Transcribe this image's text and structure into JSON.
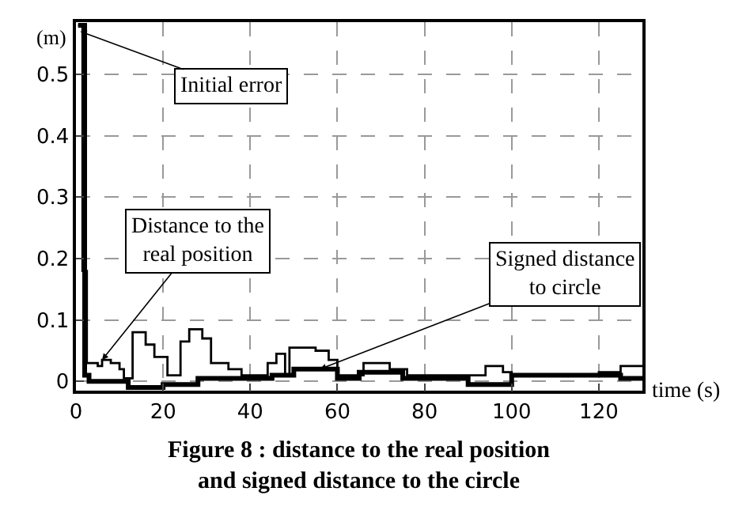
{
  "chart_data": {
    "type": "step",
    "title": "Figure 8 : distance to the real position and signed distance to the circle",
    "xlabel": "time (s)",
    "ylabel": "(m)",
    "xlim": [
      0,
      130
    ],
    "xticks": [
      0,
      20,
      40,
      60,
      80,
      100,
      120
    ],
    "ylim": [
      -0.015,
      0.585
    ],
    "yticks": [
      0,
      0.1,
      0.2,
      0.3,
      0.4,
      0.5
    ],
    "grid": true,
    "line_style": "solid",
    "series": [
      {
        "color": "#000000",
        "x": [
          0.5,
          1.5,
          2.5,
          5,
          6,
          8,
          10,
          11,
          13,
          16,
          18,
          21,
          24,
          26,
          29,
          31,
          35,
          38,
          44,
          46,
          48,
          49,
          55,
          58,
          60,
          66,
          72,
          76,
          94,
          98,
          100,
          120,
          125,
          130
        ],
        "values": [
          0.58,
          0.18,
          0.03,
          0.025,
          0.035,
          0.03,
          0.02,
          0.005,
          0.08,
          0.06,
          0.04,
          0.01,
          0.065,
          0.085,
          0.07,
          0.03,
          0.02,
          0.01,
          0.03,
          0.045,
          0.01,
          0.055,
          0.05,
          0.035,
          0.01,
          0.03,
          0.02,
          0.01,
          0.025,
          0.015,
          0.01,
          0.015,
          0.025,
          0.025
        ]
      },
      {
        "color": "#000000",
        "x": [
          0.5,
          2,
          3,
          12,
          20,
          28,
          45,
          50,
          60,
          65,
          75,
          90,
          100,
          125,
          130
        ],
        "values": [
          0.58,
          0.01,
          0,
          -0.01,
          -0.005,
          0.005,
          0.01,
          0.02,
          0.005,
          0.015,
          0.005,
          -0.005,
          0.01,
          0.005,
          0.005
        ]
      }
    ],
    "annotations": [
      {
        "text": "Initial error",
        "x": 1,
        "y": 0.57
      },
      {
        "text": "Distance to the real position",
        "x": 6,
        "y": 0.035
      },
      {
        "text": "Signed distance to circle",
        "x": 56,
        "y": 0.02
      }
    ]
  }
}
